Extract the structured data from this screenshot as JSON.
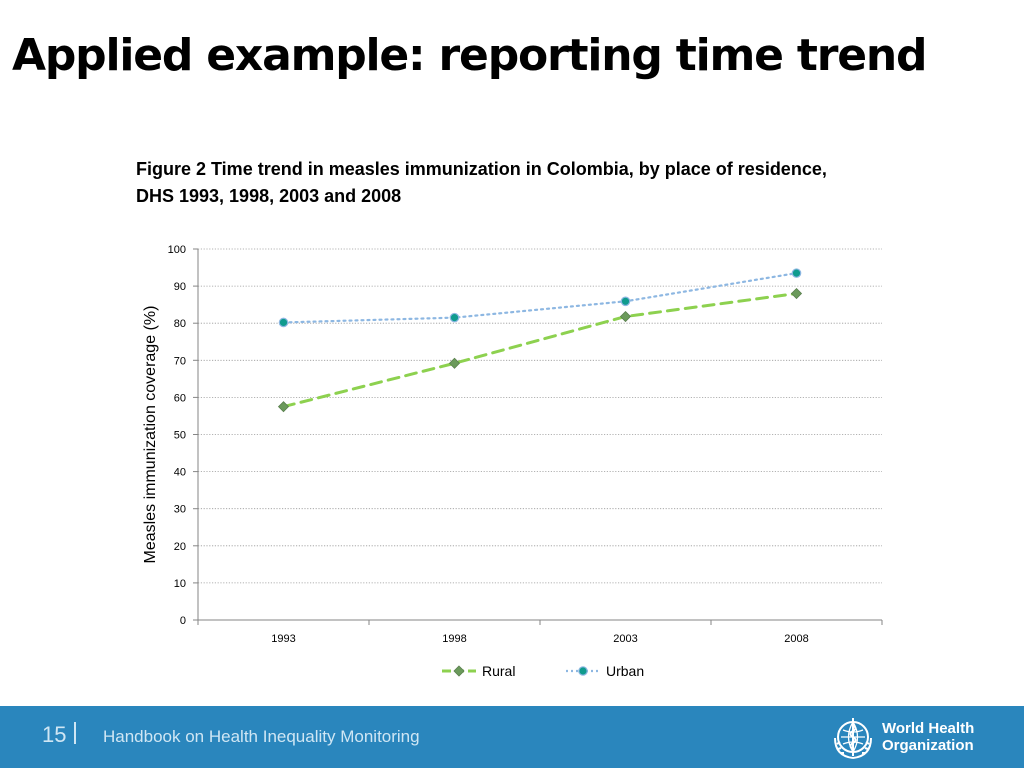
{
  "slide": {
    "title": "Applied example: reporting time trend",
    "caption_line1": "Figure 2 Time trend in measles immunization in Colombia, by place of residence,",
    "caption_line2": "DHS 1993, 1998, 2003 and 2008"
  },
  "chart_data": {
    "type": "line",
    "title": "Figure 2 Time trend in measles immunization in Colombia, by place of residence, DHS 1993, 1998, 2003 and 2008",
    "xlabel": "",
    "ylabel": "Measles immunization coverage (%)",
    "categories": [
      "1993",
      "1998",
      "2003",
      "2008"
    ],
    "ylim": [
      0,
      100
    ],
    "yticks": [
      0,
      10,
      20,
      30,
      40,
      50,
      60,
      70,
      80,
      90,
      100
    ],
    "grid": true,
    "legend_position": "bottom",
    "series": [
      {
        "name": "Rural",
        "values": [
          57.5,
          69.2,
          81.8,
          88.0
        ],
        "color": "#8dd14f",
        "marker": "diamond",
        "marker_color": "#6b9a5b",
        "line_style": "dashed"
      },
      {
        "name": "Urban",
        "values": [
          80.2,
          81.5,
          85.9,
          93.5
        ],
        "color": "#8db7e2",
        "marker": "circle",
        "marker_color": "#0f9b8e",
        "line_style": "dotted"
      }
    ]
  },
  "footer": {
    "page_number": "15",
    "text": "Handbook on Health Inequality Monitoring",
    "org_line1": "World Health",
    "org_line2": "Organization",
    "background_color": "#2a86bd",
    "logo_icon": "who-emblem-icon"
  }
}
